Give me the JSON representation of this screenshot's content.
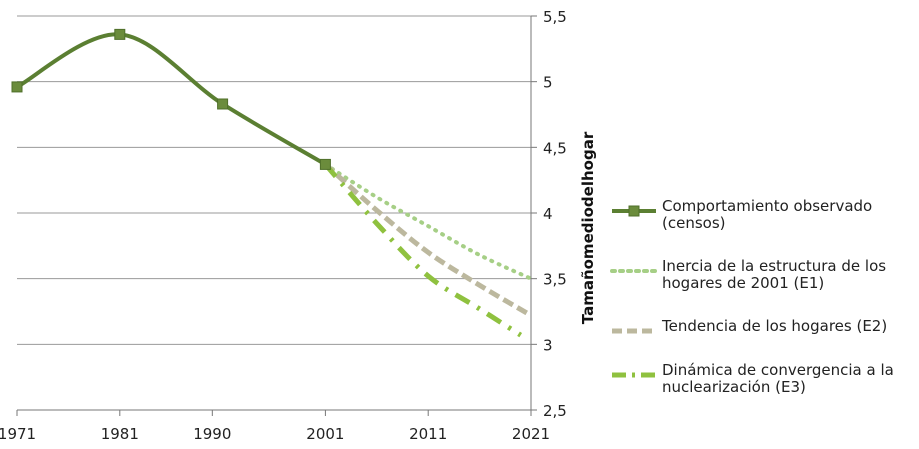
{
  "chart_data": {
    "type": "line",
    "x": [
      1971,
      1981,
      1990,
      2001,
      2011,
      2021
    ],
    "xlabel": "",
    "ylabel": "Tamañomediodelhogar",
    "ylim": [
      2.5,
      5.5
    ],
    "yticks": [
      "2,5",
      "3",
      "3,5",
      "4",
      "4,5",
      "5",
      "5,5"
    ],
    "xticks": [
      "1971",
      "1981",
      "1990",
      "2001",
      "2011",
      "2021"
    ],
    "y_axis_position": "right",
    "grid": true,
    "legend_position": "right",
    "series": [
      {
        "name": "Comportamiento observado (censos)",
        "style": "solid-square-markers",
        "color": "#5b7f32",
        "points": [
          [
            1971,
            4.96
          ],
          [
            1981,
            5.36
          ],
          [
            1991,
            4.83
          ],
          [
            2001,
            4.37
          ]
        ]
      },
      {
        "name": "Inercia de la estructura de los hogares de 2001 (E1)",
        "style": "dotted",
        "color": "#a6cf86",
        "points": [
          [
            2001,
            4.37
          ],
          [
            2006,
            4.12
          ],
          [
            2011,
            3.9
          ],
          [
            2016,
            3.68
          ],
          [
            2021,
            3.5
          ]
        ]
      },
      {
        "name": "Tendencia de los hogares (E2)",
        "style": "dashed",
        "color": "#bcb89e",
        "points": [
          [
            2001,
            4.37
          ],
          [
            2006,
            4.02
          ],
          [
            2011,
            3.7
          ],
          [
            2016,
            3.45
          ],
          [
            2021,
            3.22
          ]
        ]
      },
      {
        "name": "Dinámica de convergencia a la nuclearización (E3)",
        "style": "dash-dot",
        "color": "#8fc13f",
        "points": [
          [
            2001,
            4.37
          ],
          [
            2006,
            3.92
          ],
          [
            2011,
            3.52
          ],
          [
            2016,
            3.27
          ],
          [
            2020,
            3.07
          ]
        ]
      }
    ]
  },
  "legend": {
    "items": [
      "Comportamiento observado (censos)",
      "Inercia de la estructura de los hogares de 2001 (E1)",
      "Tendencia de los hogares (E2)",
      "Dinámica de convergencia a la nuclearización (E3)"
    ]
  }
}
